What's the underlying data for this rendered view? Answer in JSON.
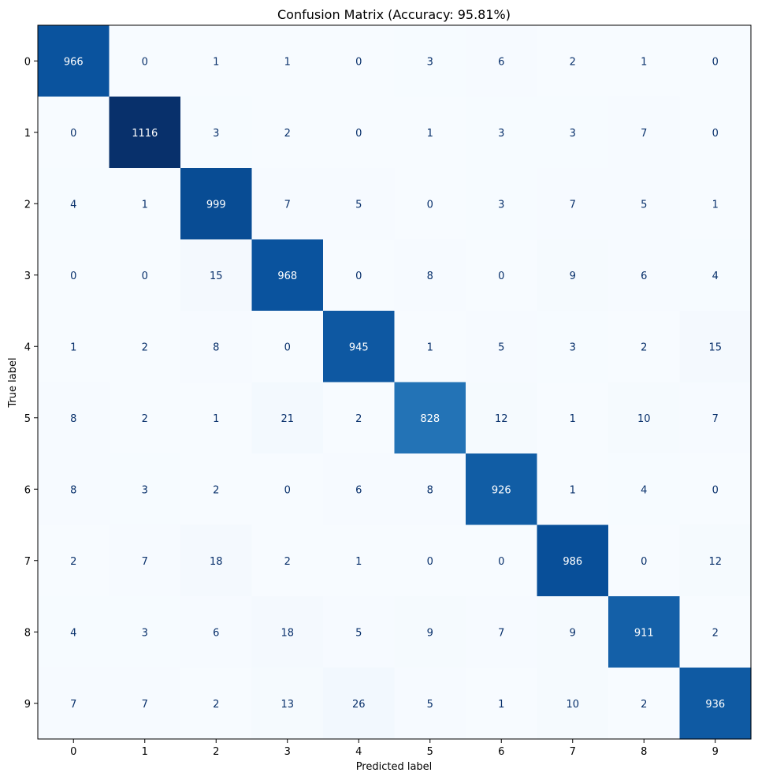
{
  "chart_data": {
    "type": "heatmap",
    "title": "Confusion Matrix (Accuracy: 95.81%)",
    "xlabel": "Predicted label",
    "ylabel": "True label",
    "x_categories": [
      "0",
      "1",
      "2",
      "3",
      "4",
      "5",
      "6",
      "7",
      "8",
      "9"
    ],
    "y_categories": [
      "0",
      "1",
      "2",
      "3",
      "4",
      "5",
      "6",
      "7",
      "8",
      "9"
    ],
    "values": [
      [
        966,
        0,
        1,
        1,
        0,
        3,
        6,
        2,
        1,
        0
      ],
      [
        0,
        1116,
        3,
        2,
        0,
        1,
        3,
        3,
        7,
        0
      ],
      [
        4,
        1,
        999,
        7,
        5,
        0,
        3,
        7,
        5,
        1
      ],
      [
        0,
        0,
        15,
        968,
        0,
        8,
        0,
        9,
        6,
        4
      ],
      [
        1,
        2,
        8,
        0,
        945,
        1,
        5,
        3,
        2,
        15
      ],
      [
        8,
        2,
        1,
        21,
        2,
        828,
        12,
        1,
        10,
        7
      ],
      [
        8,
        3,
        2,
        0,
        6,
        8,
        926,
        1,
        4,
        0
      ],
      [
        2,
        7,
        18,
        2,
        1,
        0,
        0,
        986,
        0,
        12
      ],
      [
        4,
        3,
        6,
        18,
        5,
        9,
        7,
        9,
        911,
        2
      ],
      [
        7,
        7,
        2,
        13,
        26,
        5,
        1,
        10,
        2,
        936
      ]
    ],
    "colormap": "Blues",
    "color_low": "#f7fbff",
    "color_high": "#08306b",
    "text_dark": "#08306b",
    "text_light": "#ffffff",
    "colorbar": false,
    "grid": false
  }
}
